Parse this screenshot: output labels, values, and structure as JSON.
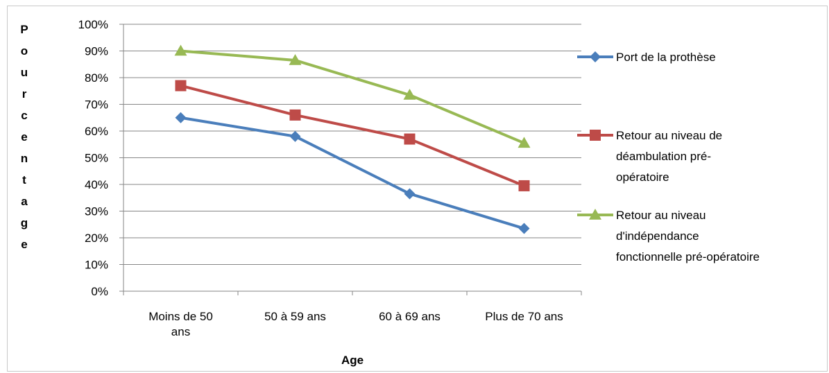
{
  "chart_data": {
    "type": "line",
    "categories": [
      [
        "Moins de 50",
        "ans"
      ],
      [
        "50 à 59 ans"
      ],
      [
        "60 à 69 ans"
      ],
      [
        "Plus de 70 ans"
      ]
    ],
    "xlabel": "Age",
    "ylabel": "Pourcentage",
    "ylim": [
      0,
      100
    ],
    "yticks": [
      "0%",
      "10%",
      "20%",
      "30%",
      "40%",
      "50%",
      "60%",
      "70%",
      "80%",
      "90%",
      "100%"
    ],
    "grid": true,
    "legend_position": "right",
    "series": [
      {
        "name": [
          "Port de la prothèse"
        ],
        "color": "#4a7ebb",
        "marker": "diamond",
        "values": [
          65,
          58,
          36.5,
          23.5
        ]
      },
      {
        "name": [
          "Retour au niveau de",
          "déambulation pré-",
          "opératoire"
        ],
        "color": "#be4b48",
        "marker": "square",
        "values": [
          77,
          66,
          57,
          39.5
        ]
      },
      {
        "name": [
          "Retour au niveau",
          "d'indépendance",
          "fonctionnelle pré-opératoire"
        ],
        "color": "#98b954",
        "marker": "triangle",
        "values": [
          90,
          86.5,
          73.5,
          55.5
        ]
      }
    ]
  }
}
